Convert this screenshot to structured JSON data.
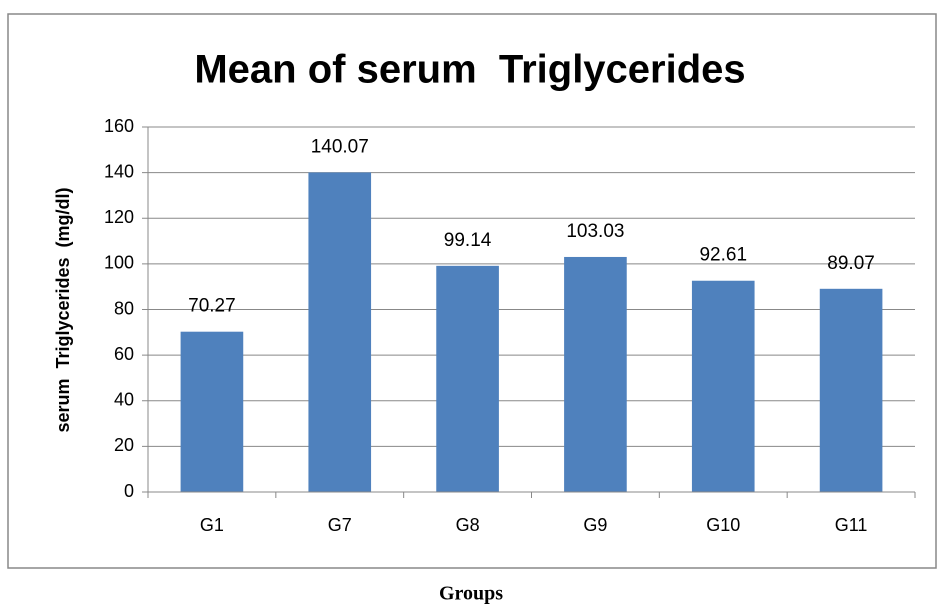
{
  "chart_data": {
    "type": "bar",
    "title": "Mean of serum  Triglycerides",
    "y_axis_label": "serum  Triglycerides  (mg/dl)",
    "x_axis_label": "Groups",
    "categories": [
      "G1",
      "G7",
      "G8",
      "G9",
      "G10",
      "G11"
    ],
    "values": [
      70.27,
      140.07,
      99.14,
      103.03,
      92.61,
      89.07
    ],
    "color": "#4f81bd",
    "ylim": [
      0,
      160
    ],
    "yticks": [
      0,
      20,
      40,
      60,
      80,
      100,
      120,
      140,
      160
    ],
    "grid": true
  }
}
